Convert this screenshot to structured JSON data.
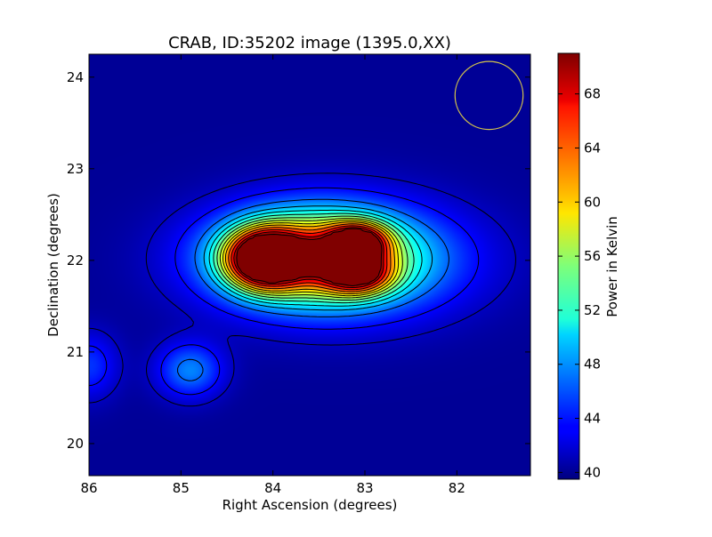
{
  "chart_data": {
    "type": "heatmap",
    "title": "CRAB, ID:35202 image (1395.0,XX)",
    "xlabel": "Right Ascension (degrees)",
    "ylabel": "Declination (degrees)",
    "colorbar_label": "Power in Kelvin",
    "xlim": [
      86.0,
      81.2
    ],
    "ylim": [
      19.65,
      24.25
    ],
    "x_ticks": [
      86,
      85,
      84,
      83,
      82
    ],
    "y_ticks": [
      20,
      21,
      22,
      23,
      24
    ],
    "x_tick_labels": [
      "86",
      "85",
      "84",
      "83",
      "82"
    ],
    "y_tick_labels": [
      "20",
      "21",
      "22",
      "23",
      "24"
    ],
    "colorbar_range": [
      39.5,
      71.0
    ],
    "colorbar_ticks": [
      40,
      44,
      48,
      52,
      56,
      60,
      64,
      68
    ],
    "colorbar_tick_labels": [
      "40",
      "44",
      "48",
      "52",
      "56",
      "60",
      "64",
      "68"
    ],
    "colormap": "jet",
    "background_level": 40.2,
    "sources": [
      {
        "ra": 84.1,
        "dec": 22.02,
        "peak_K": 70.5,
        "sigma_ra": 0.27,
        "sigma_dec": 0.21
      },
      {
        "ra": 83.08,
        "dec": 22.2,
        "peak_K": 62.0,
        "sigma_ra": 0.22,
        "sigma_dec": 0.14
      },
      {
        "ra": 83.08,
        "dec": 21.85,
        "peak_K": 58.5,
        "sigma_ra": 0.25,
        "sigma_dec": 0.15
      },
      {
        "ra": 83.6,
        "dec": 22.05,
        "peak_K": 57.5,
        "sigma_ra": 0.65,
        "sigma_dec": 0.32
      },
      {
        "ra": 83.3,
        "dec": 22.0,
        "peak_K": 53.0,
        "sigma_ra": 0.9,
        "sigma_dec": 0.42
      },
      {
        "ra": 84.9,
        "dec": 20.8,
        "peak_K": 47.5,
        "sigma_ra": 0.25,
        "sigma_dec": 0.21
      },
      {
        "ra": 86.0,
        "dec": 20.85,
        "peak_K": 45.0,
        "sigma_ra": 0.22,
        "sigma_dec": 0.25
      }
    ],
    "contour_levels_K": [
      41.5,
      43.5,
      46.5,
      49,
      51,
      53,
      55,
      57,
      59,
      61,
      63.5,
      66,
      68.5,
      70.2
    ],
    "beam_marker": {
      "ra": 81.65,
      "dec": 23.8,
      "radius_deg": 0.37,
      "color": "#d4c44a"
    },
    "grid": false,
    "colors": {
      "contour": "#000000",
      "frame": "#000000",
      "background": "#ffffff"
    }
  }
}
